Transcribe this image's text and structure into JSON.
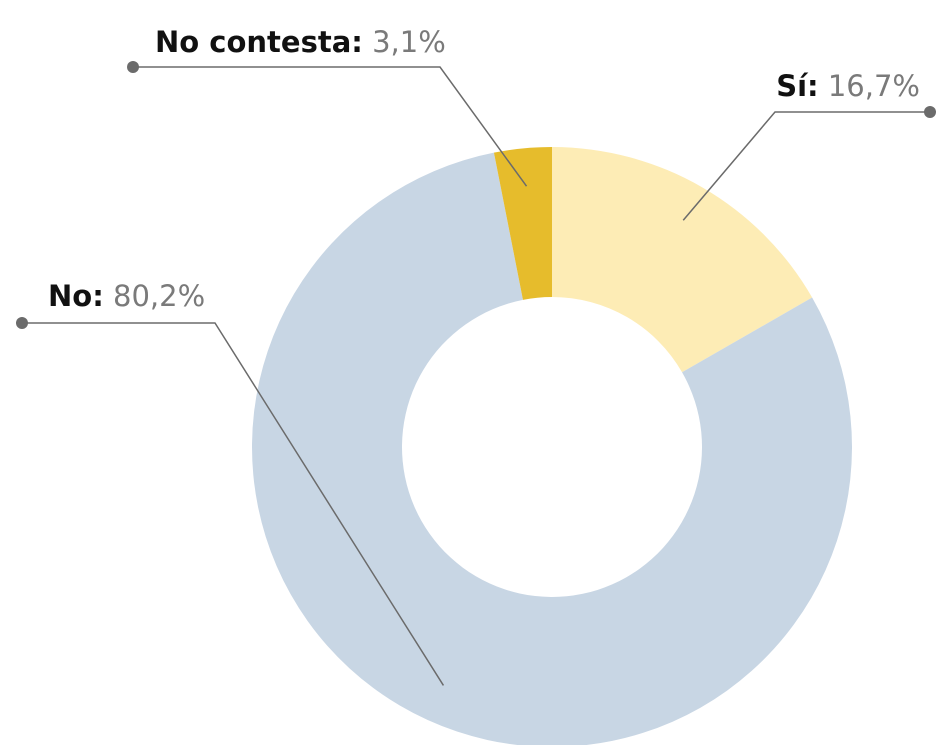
{
  "chart_data": {
    "type": "donut",
    "categories": [
      "Sí:",
      "No:",
      "No contesta:"
    ],
    "values": [
      16.7,
      80.2,
      3.1
    ],
    "value_labels": [
      "16,7%",
      "80,2%",
      "3,1%"
    ],
    "colors": [
      "#fdecb5",
      "#c8d6e4",
      "#e6bc2c"
    ]
  }
}
